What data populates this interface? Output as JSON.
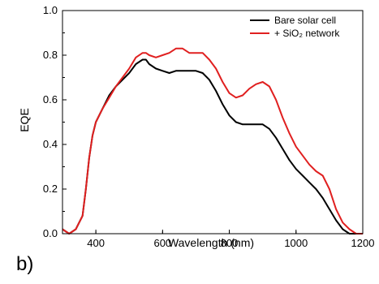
{
  "panel_label": "b)",
  "chart_data": {
    "type": "line",
    "xlabel": "Wavelength (nm)",
    "ylabel": "EQE",
    "xlim": [
      300,
      1200
    ],
    "ylim": [
      0.0,
      1.0
    ],
    "x_ticks": [
      "400",
      "600",
      "800",
      "1000",
      "1200"
    ],
    "y_ticks": [
      "0.0",
      "0.2",
      "0.4",
      "0.6",
      "0.8",
      "1.0"
    ],
    "grid": false,
    "legend_position": "top-right",
    "series": [
      {
        "name": "Bare solar cell",
        "color": "#000000",
        "x": [
          300,
          320,
          340,
          360,
          370,
          380,
          390,
          400,
          420,
          440,
          460,
          480,
          500,
          520,
          540,
          550,
          560,
          580,
          600,
          620,
          640,
          660,
          680,
          700,
          720,
          740,
          760,
          780,
          800,
          820,
          840,
          860,
          880,
          900,
          920,
          940,
          960,
          980,
          1000,
          1020,
          1040,
          1060,
          1080,
          1100,
          1120,
          1140,
          1160,
          1180,
          1200
        ],
        "y": [
          0.02,
          0.0,
          0.02,
          0.08,
          0.2,
          0.34,
          0.44,
          0.5,
          0.56,
          0.62,
          0.66,
          0.69,
          0.72,
          0.76,
          0.78,
          0.78,
          0.76,
          0.74,
          0.73,
          0.72,
          0.73,
          0.73,
          0.73,
          0.73,
          0.72,
          0.69,
          0.64,
          0.58,
          0.53,
          0.5,
          0.49,
          0.49,
          0.49,
          0.49,
          0.47,
          0.43,
          0.38,
          0.33,
          0.29,
          0.26,
          0.23,
          0.2,
          0.16,
          0.11,
          0.06,
          0.02,
          0.0,
          0.0,
          0.0
        ]
      },
      {
        "name": "+ SiO₂ network",
        "color": "#e02020",
        "x": [
          300,
          320,
          340,
          360,
          370,
          380,
          390,
          400,
          420,
          440,
          460,
          480,
          500,
          520,
          540,
          550,
          560,
          580,
          600,
          620,
          640,
          660,
          680,
          700,
          720,
          740,
          760,
          780,
          800,
          820,
          840,
          860,
          880,
          900,
          920,
          940,
          960,
          980,
          1000,
          1020,
          1040,
          1060,
          1080,
          1100,
          1120,
          1140,
          1160,
          1180,
          1200
        ],
        "y": [
          0.02,
          0.0,
          0.02,
          0.08,
          0.2,
          0.34,
          0.44,
          0.5,
          0.56,
          0.61,
          0.66,
          0.7,
          0.74,
          0.79,
          0.81,
          0.81,
          0.8,
          0.79,
          0.8,
          0.81,
          0.83,
          0.83,
          0.81,
          0.81,
          0.81,
          0.78,
          0.74,
          0.68,
          0.63,
          0.61,
          0.62,
          0.65,
          0.67,
          0.68,
          0.66,
          0.6,
          0.52,
          0.45,
          0.39,
          0.35,
          0.31,
          0.28,
          0.26,
          0.2,
          0.11,
          0.05,
          0.02,
          0.0,
          0.0
        ]
      }
    ]
  }
}
